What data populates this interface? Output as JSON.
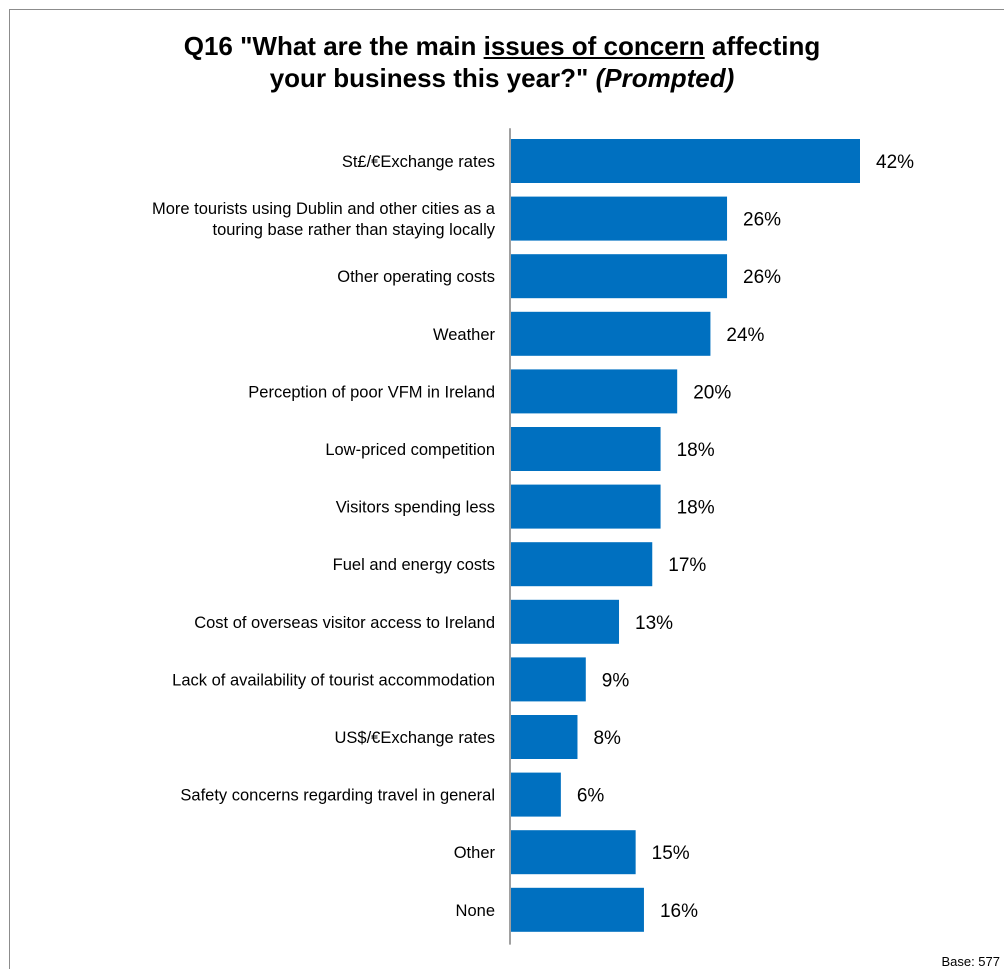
{
  "title": {
    "part1": "Q16 \"What are the main ",
    "underlined": "issues of concern",
    "part2": " affecting",
    "line2": "your business this year?\" ",
    "italic": "(Prompted)"
  },
  "base_note": "Base: 577",
  "chart_data": {
    "type": "bar",
    "orientation": "horizontal",
    "bar_color": "#0070C0",
    "categories": [
      [
        "St£/€Exchange rates"
      ],
      [
        "More tourists using Dublin and other cities as a",
        "touring base rather than staying locally"
      ],
      [
        "Other operating costs"
      ],
      [
        "Weather"
      ],
      [
        "Perception of poor VFM in Ireland"
      ],
      [
        "Low-priced competition"
      ],
      [
        "Visitors spending less"
      ],
      [
        "Fuel and energy costs"
      ],
      [
        "Cost of overseas visitor access to Ireland"
      ],
      [
        "Lack of availability of tourist accommodation"
      ],
      [
        "US$/€Exchange rates"
      ],
      [
        "Safety concerns regarding travel in general"
      ],
      [
        "Other"
      ],
      [
        "None"
      ]
    ],
    "values": [
      42,
      26,
      26,
      24,
      20,
      18,
      18,
      17,
      13,
      9,
      8,
      6,
      15,
      16
    ],
    "value_labels": [
      "42%",
      "26%",
      "26%",
      "24%",
      "20%",
      "18%",
      "18%",
      "17%",
      "13%",
      "9%",
      "8%",
      "6%",
      "15%",
      "16%"
    ],
    "xlim": [
      0,
      42
    ]
  }
}
